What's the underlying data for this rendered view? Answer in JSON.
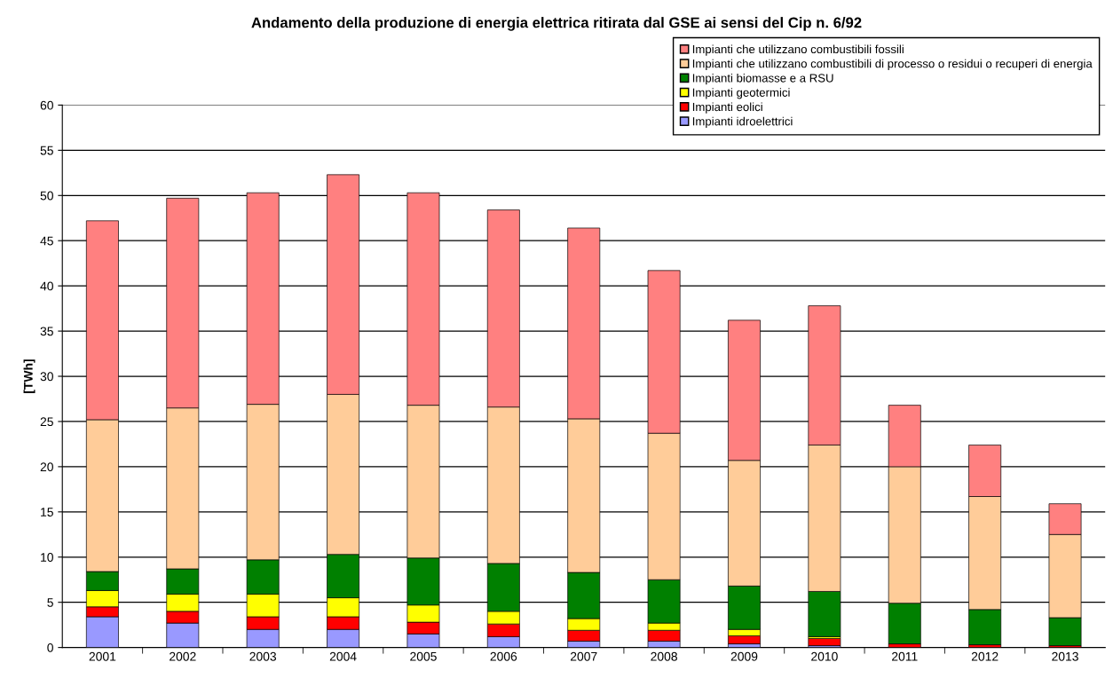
{
  "chart_data": {
    "type": "bar",
    "stacked": true,
    "title": "Andamento della produzione di energia elettrica ritirata dal GSE ai sensi del Cip n. 6/92",
    "ylabel": "[TWh]",
    "categories": [
      "2001",
      "2002",
      "2003",
      "2004",
      "2005",
      "2006",
      "2007",
      "2008",
      "2009",
      "2010",
      "2011",
      "2012",
      "2013"
    ],
    "series": [
      {
        "name": "Impianti idroelettrici",
        "color": "#9999ff",
        "values": [
          3.4,
          2.7,
          2.0,
          2.0,
          1.5,
          1.2,
          0.7,
          0.7,
          0.4,
          0.2,
          0,
          0,
          0
        ]
      },
      {
        "name": "Impianti eolici",
        "color": "#ff0000",
        "values": [
          1.1,
          1.3,
          1.4,
          1.4,
          1.3,
          1.4,
          1.2,
          1.2,
          0.9,
          0.8,
          0.4,
          0.3,
          0.2
        ]
      },
      {
        "name": "Impianti geotermici",
        "color": "#ffff00",
        "values": [
          1.8,
          1.9,
          2.5,
          2.1,
          1.9,
          1.4,
          1.3,
          0.8,
          0.7,
          0.2,
          0,
          0,
          0
        ]
      },
      {
        "name": "Impianti biomasse e a RSU",
        "color": "#008000",
        "values": [
          2.1,
          2.8,
          3.8,
          4.8,
          5.2,
          5.3,
          5.1,
          4.8,
          4.8,
          5.0,
          4.5,
          3.9,
          3.1
        ]
      },
      {
        "name": "Impianti che utilizzano combustibili di processo o residui o recuperi di energia",
        "color": "#ffcc99",
        "values": [
          16.8,
          17.8,
          17.2,
          17.7,
          16.9,
          17.3,
          17.0,
          16.2,
          13.9,
          16.2,
          15.1,
          12.5,
          9.2
        ]
      },
      {
        "name": "Impianti che utilizzano combustibili fossili",
        "color": "#ff8080",
        "values": [
          22.0,
          23.2,
          23.4,
          24.3,
          23.5,
          21.8,
          21.1,
          18.0,
          15.5,
          15.4,
          6.8,
          5.7,
          3.4
        ]
      }
    ],
    "ylim": [
      0,
      60
    ],
    "yticks": [
      0,
      5,
      10,
      15,
      20,
      25,
      30,
      35,
      40,
      45,
      50,
      55,
      60
    ],
    "grid": "y",
    "legend": "top right"
  }
}
